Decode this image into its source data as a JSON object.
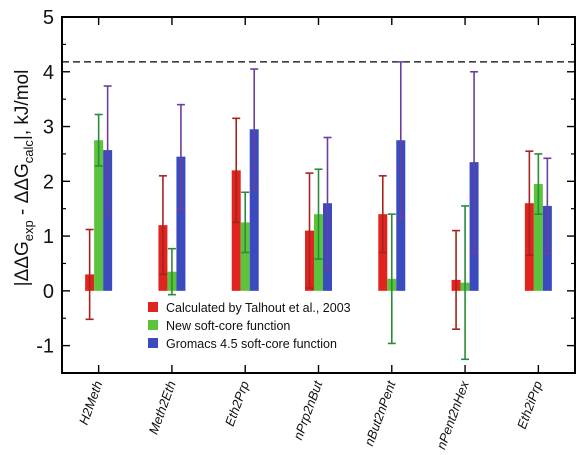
{
  "chart_data": {
    "type": "bar",
    "title": "",
    "xlabel": "",
    "ylabel": {
      "prefix": "|ΔΔG",
      "sub1": "exp",
      "middle": " - ΔΔG",
      "sub2": "calc",
      "suffix": "|, kJ/mol"
    },
    "ylim": [
      -1.5,
      5
    ],
    "yticks": [
      "-1",
      "0",
      "1",
      "2",
      "3",
      "4",
      "5"
    ],
    "reference_line": 4.18,
    "categories": [
      "H2Meth",
      "Meth2Eth",
      "Eth2Prp",
      "nPrp2nBut",
      "nBut2nPent",
      "nPent2nHex",
      "Eth2iPrp"
    ],
    "legend_position": "bottom-center",
    "grid": false,
    "series": [
      {
        "name": "Calculated by Talhout et al., 2003",
        "color": "#e0251f",
        "errcolor": "#a8231e",
        "values": [
          0.3,
          1.2,
          2.2,
          1.1,
          1.4,
          0.2,
          1.6
        ],
        "errors": [
          0.82,
          0.9,
          0.95,
          1.05,
          0.7,
          0.9,
          0.95
        ]
      },
      {
        "name": "New soft-core function",
        "color": "#5cc43c",
        "errcolor": "#2a8c3a",
        "values": [
          2.75,
          0.35,
          1.25,
          1.4,
          0.22,
          0.15,
          1.95
        ],
        "errors": [
          0.47,
          0.42,
          0.55,
          0.82,
          1.18,
          1.4,
          0.55
        ]
      },
      {
        "name": "Gromacs 4.5 soft-core function",
        "color": "#3c4ac0",
        "errcolor": "#6a3f9e",
        "values": [
          2.57,
          2.45,
          2.95,
          1.6,
          2.75,
          2.35,
          1.55
        ],
        "errors": [
          1.17,
          0.95,
          1.1,
          1.2,
          1.43,
          1.65,
          0.87
        ]
      }
    ]
  }
}
